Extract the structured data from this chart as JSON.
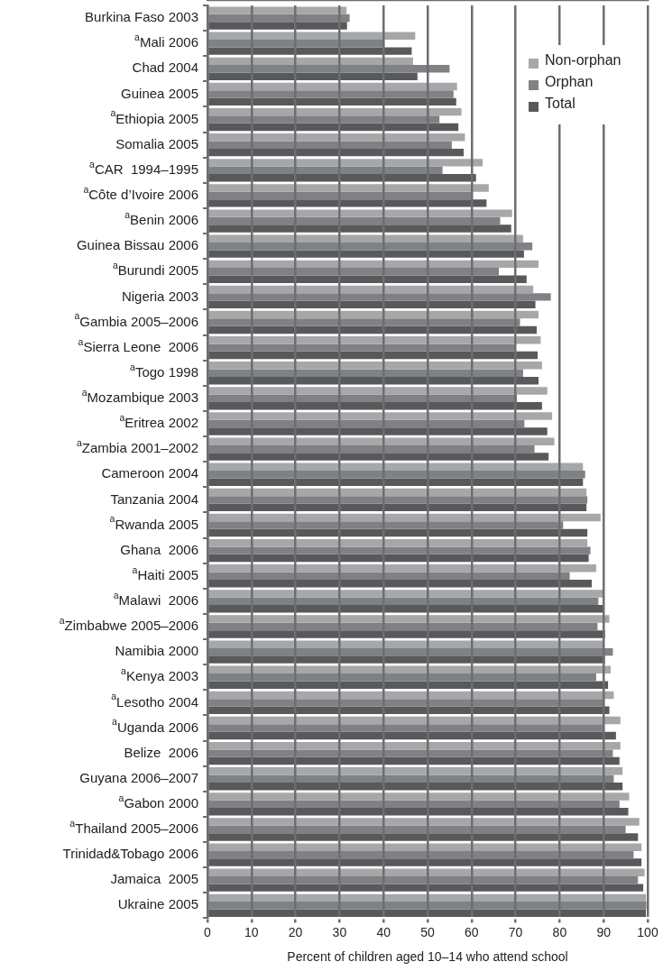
{
  "chart_data": {
    "type": "bar",
    "orientation": "horizontal",
    "xlabel": "Percent of children aged 10–14 who attend school",
    "categories": [
      "Burkina Faso 2003",
      "$^{a}$Mali 2006",
      "Chad 2004",
      "Guinea 2005",
      "$^{a}$Ethiopia 2005",
      "Somalia 2005",
      "$^{a}$CAR  1994–1995",
      "$^{a}$Côte d’Ivoire 2006",
      "$^{a}$Benin 2006",
      "Guinea Bissau 2006",
      "$^{a}$Burundi 2005",
      "Nigeria 2003",
      "$^{a}$Gambia 2005–2006",
      "$^{a}$Sierra Leone  2006",
      "$^{a}$Togo 1998",
      "$^{a}$Mozambique 2003",
      "$^{a}$Eritrea 2002",
      "$^{a}$Zambia 2001–2002",
      "Cameroon 2004",
      "Tanzania 2004",
      "$^{a}$Rwanda 2005",
      "Ghana  2006",
      "$^{a}$Haiti 2005",
      "$^{a}$Malawi  2006",
      "$^{a}$Zimbabwe 2005–2006",
      "Namibia 2000",
      "$^{a}$Kenya 2003",
      "$^{a}$Lesotho 2004",
      "$^{a}$Uganda 2006",
      "Belize  2006",
      "Guyana 2006–2007",
      "$^{a}$Gabon 2000",
      "$^{a}$Thailand 2005–2006",
      "Trinidad&Tobago 2006",
      "Jamaica  2005",
      "Ukraine 2005"
    ],
    "series": [
      {
        "name": "Non-orphan",
        "color": "#a6a7a9",
        "values": [
          31.6,
          47.2,
          46.7,
          56.7,
          57.7,
          58.5,
          62.5,
          63.9,
          69.2,
          71.7,
          75.2,
          74.0,
          75.2,
          75.7,
          76.0,
          77.2,
          78.3,
          78.8,
          85.3,
          86.1,
          89.3,
          86.3,
          88.3,
          90.1,
          91.3,
          90.1,
          91.6,
          92.3,
          93.8,
          93.8,
          94.3,
          95.8,
          98.1,
          98.6,
          99.3,
          99.6
        ]
      },
      {
        "name": "Orphan",
        "color": "#808184",
        "values": [
          32.3,
          40.2,
          55.0,
          55.9,
          52.7,
          55.5,
          53.4,
          60.0,
          66.5,
          73.8,
          66.2,
          78.0,
          71.0,
          70.0,
          71.7,
          70.3,
          72.0,
          74.3,
          85.8,
          86.3,
          80.8,
          87.0,
          82.3,
          88.8,
          88.6,
          92.1,
          88.3,
          90.2,
          90.2,
          92.1,
          92.3,
          93.6,
          95.0,
          96.8,
          97.8,
          99.7
        ]
      },
      {
        "name": "Total",
        "color": "#58595b",
        "values": [
          31.7,
          46.4,
          47.7,
          56.5,
          57.0,
          58.2,
          61.0,
          63.4,
          69.0,
          71.9,
          72.5,
          74.5,
          74.8,
          75.0,
          75.2,
          76.0,
          77.2,
          77.5,
          85.3,
          86.1,
          86.3,
          86.6,
          87.3,
          89.8,
          90.3,
          90.3,
          91.0,
          91.3,
          92.8,
          93.6,
          94.3,
          95.6,
          97.8,
          98.6,
          99.0,
          99.6
        ]
      }
    ],
    "xlim": [
      0,
      100
    ],
    "xticks": [
      0,
      10,
      20,
      30,
      40,
      50,
      60,
      70,
      80,
      90,
      100
    ],
    "grid": "x",
    "legend": "top right"
  }
}
